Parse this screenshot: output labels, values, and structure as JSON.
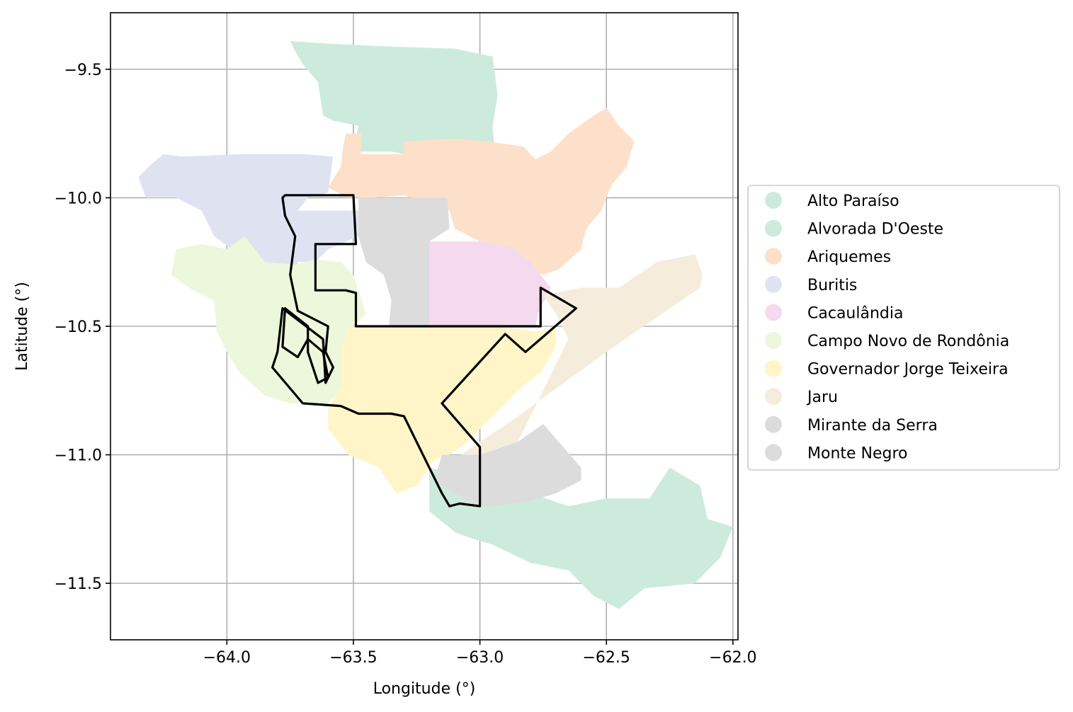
{
  "chart_data": {
    "type": "map",
    "xlabel": "Longitude (°)",
    "ylabel": "Latitude (°)",
    "xlim": [
      -64.46,
      -61.98
    ],
    "ylim": [
      -11.72,
      -9.28
    ],
    "xticks": [
      -64.0,
      -63.5,
      -63.0,
      -62.5,
      -62.0
    ],
    "yticks": [
      -9.5,
      -10.0,
      -10.5,
      -11.0,
      -11.5
    ],
    "xtick_labels": [
      "−64.0",
      "−63.5",
      "−63.0",
      "−62.5",
      "−62.0"
    ],
    "ytick_labels": [
      "−9.5",
      "−10.0",
      "−10.5",
      "−11.0",
      "−11.5"
    ],
    "grid": true,
    "legend_position": "right",
    "legend": [
      {
        "name": "Alto Paraíso",
        "color": "#cdebdc"
      },
      {
        "name": "Alvorada D'Oeste",
        "color": "#cdebdc"
      },
      {
        "name": "Ariquemes",
        "color": "#fde0c9"
      },
      {
        "name": "Buritis",
        "color": "#dfe3f1"
      },
      {
        "name": "Cacaulândia",
        "color": "#f5d9ee"
      },
      {
        "name": "Campo Novo de Rondônia",
        "color": "#ecf7dc"
      },
      {
        "name": "Governador Jorge Teixeira",
        "color": "#fff5c8"
      },
      {
        "name": "Jaru",
        "color": "#f6ecdc"
      },
      {
        "name": "Mirante da Serra",
        "color": "#dcdcdc"
      },
      {
        "name": "Monte Negro",
        "color": "#dcdcdc"
      }
    ],
    "regions": [
      {
        "name": "Alto Paraíso",
        "color": "#cdebdc",
        "coords": [
          [
            -63.75,
            -9.39
          ],
          [
            -63.6,
            -9.4
          ],
          [
            -63.4,
            -9.41
          ],
          [
            -63.1,
            -9.42
          ],
          [
            -62.95,
            -9.45
          ],
          [
            -62.93,
            -9.6
          ],
          [
            -62.95,
            -9.72
          ],
          [
            -62.94,
            -9.83
          ],
          [
            -63.3,
            -9.83
          ],
          [
            -63.35,
            -9.82
          ],
          [
            -63.5,
            -9.82
          ],
          [
            -63.48,
            -9.72
          ],
          [
            -63.58,
            -9.7
          ],
          [
            -63.62,
            -9.68
          ],
          [
            -63.64,
            -9.55
          ],
          [
            -63.7,
            -9.48
          ],
          [
            -63.73,
            -9.43
          ]
        ]
      },
      {
        "name": "Alvorada D'Oeste",
        "color": "#cdebdc",
        "coords": [
          [
            -63.2,
            -11.05
          ],
          [
            -63.0,
            -11.1
          ],
          [
            -62.8,
            -11.15
          ],
          [
            -62.65,
            -11.2
          ],
          [
            -62.5,
            -11.17
          ],
          [
            -62.33,
            -11.17
          ],
          [
            -62.25,
            -11.05
          ],
          [
            -62.13,
            -11.12
          ],
          [
            -62.1,
            -11.25
          ],
          [
            -62.0,
            -11.28
          ],
          [
            -62.05,
            -11.4
          ],
          [
            -62.15,
            -11.5
          ],
          [
            -62.35,
            -11.52
          ],
          [
            -62.45,
            -11.6
          ],
          [
            -62.55,
            -11.55
          ],
          [
            -62.65,
            -11.45
          ],
          [
            -62.8,
            -11.42
          ],
          [
            -62.95,
            -11.35
          ],
          [
            -63.05,
            -11.32
          ],
          [
            -63.1,
            -11.3
          ],
          [
            -63.2,
            -11.22
          ]
        ]
      },
      {
        "name": "Ariquemes",
        "color": "#fde0c9",
        "coords": [
          [
            -63.53,
            -9.75
          ],
          [
            -63.47,
            -9.75
          ],
          [
            -63.47,
            -9.83
          ],
          [
            -63.3,
            -9.83
          ],
          [
            -63.3,
            -9.78
          ],
          [
            -63.1,
            -9.77
          ],
          [
            -62.98,
            -9.78
          ],
          [
            -62.83,
            -9.8
          ],
          [
            -62.78,
            -9.85
          ],
          [
            -62.72,
            -9.82
          ],
          [
            -62.65,
            -9.75
          ],
          [
            -62.55,
            -9.68
          ],
          [
            -62.5,
            -9.65
          ],
          [
            -62.45,
            -9.72
          ],
          [
            -62.39,
            -9.78
          ],
          [
            -62.42,
            -9.88
          ],
          [
            -62.48,
            -9.95
          ],
          [
            -62.52,
            -10.05
          ],
          [
            -62.58,
            -10.12
          ],
          [
            -62.6,
            -10.2
          ],
          [
            -62.69,
            -10.28
          ],
          [
            -62.75,
            -10.3
          ],
          [
            -62.9,
            -10.25
          ],
          [
            -62.99,
            -10.2
          ],
          [
            -63.0,
            -10.17
          ],
          [
            -63.1,
            -10.12
          ],
          [
            -63.12,
            -10.05
          ],
          [
            -63.3,
            -9.99
          ],
          [
            -63.42,
            -10.0
          ],
          [
            -63.52,
            -10.0
          ],
          [
            -63.6,
            -9.96
          ],
          [
            -63.55,
            -9.88
          ],
          [
            -63.54,
            -9.8
          ]
        ]
      },
      {
        "name": "Buritis",
        "color": "#dfe3f1",
        "coords": [
          [
            -64.3,
            -9.87
          ],
          [
            -64.25,
            -9.83
          ],
          [
            -64.18,
            -9.84
          ],
          [
            -63.95,
            -9.83
          ],
          [
            -63.7,
            -9.83
          ],
          [
            -63.58,
            -9.84
          ],
          [
            -63.6,
            -9.98
          ],
          [
            -63.68,
            -10.0
          ],
          [
            -63.72,
            -10.05
          ],
          [
            -63.55,
            -10.05
          ],
          [
            -63.48,
            -10.05
          ],
          [
            -63.48,
            -10.15
          ],
          [
            -63.6,
            -10.2
          ],
          [
            -63.65,
            -10.25
          ],
          [
            -63.72,
            -10.25
          ],
          [
            -63.73,
            -10.35
          ],
          [
            -63.88,
            -10.35
          ],
          [
            -63.92,
            -10.25
          ],
          [
            -63.98,
            -10.2
          ],
          [
            -64.05,
            -10.15
          ],
          [
            -64.1,
            -10.05
          ],
          [
            -64.2,
            -10.0
          ],
          [
            -64.32,
            -10.0
          ],
          [
            -64.35,
            -9.92
          ]
        ]
      },
      {
        "name": "Cacaulândia",
        "color": "#f5d9ee",
        "coords": [
          [
            -63.2,
            -10.17
          ],
          [
            -63.0,
            -10.17
          ],
          [
            -62.88,
            -10.19
          ],
          [
            -62.8,
            -10.25
          ],
          [
            -62.72,
            -10.35
          ],
          [
            -62.77,
            -10.45
          ],
          [
            -62.78,
            -10.5
          ],
          [
            -63.2,
            -10.5
          ],
          [
            -63.22,
            -10.35
          ]
        ]
      },
      {
        "name": "Campo Novo de Rondônia",
        "color": "#ecf7dc",
        "coords": [
          [
            -64.2,
            -10.2
          ],
          [
            -64.1,
            -10.18
          ],
          [
            -64.0,
            -10.2
          ],
          [
            -63.93,
            -10.15
          ],
          [
            -63.85,
            -10.25
          ],
          [
            -63.73,
            -10.26
          ],
          [
            -63.65,
            -10.24
          ],
          [
            -63.55,
            -10.25
          ],
          [
            -63.5,
            -10.3
          ],
          [
            -63.45,
            -10.45
          ],
          [
            -63.5,
            -10.5
          ],
          [
            -63.52,
            -10.6
          ],
          [
            -63.55,
            -10.75
          ],
          [
            -63.6,
            -10.8
          ],
          [
            -63.75,
            -10.8
          ],
          [
            -63.85,
            -10.77
          ],
          [
            -63.95,
            -10.68
          ],
          [
            -64.0,
            -10.6
          ],
          [
            -64.04,
            -10.52
          ],
          [
            -64.05,
            -10.4
          ],
          [
            -64.15,
            -10.35
          ],
          [
            -64.22,
            -10.3
          ]
        ]
      },
      {
        "name": "Governador Jorge Teixeira",
        "color": "#fff5c8",
        "coords": [
          [
            -63.52,
            -10.5
          ],
          [
            -63.4,
            -10.5
          ],
          [
            -63.15,
            -10.5
          ],
          [
            -62.95,
            -10.5
          ],
          [
            -62.78,
            -10.52
          ],
          [
            -62.7,
            -10.51
          ],
          [
            -62.7,
            -10.58
          ],
          [
            -62.76,
            -10.68
          ],
          [
            -62.85,
            -10.75
          ],
          [
            -62.95,
            -10.85
          ],
          [
            -63.05,
            -10.95
          ],
          [
            -63.12,
            -11.0
          ],
          [
            -63.18,
            -11.02
          ],
          [
            -63.25,
            -11.12
          ],
          [
            -63.33,
            -11.15
          ],
          [
            -63.4,
            -11.05
          ],
          [
            -63.52,
            -11.0
          ],
          [
            -63.6,
            -10.9
          ],
          [
            -63.6,
            -10.82
          ],
          [
            -63.55,
            -10.73
          ],
          [
            -63.55,
            -10.6
          ]
        ]
      },
      {
        "name": "Jaru",
        "color": "#f6ecdc",
        "coords": [
          [
            -62.75,
            -10.38
          ],
          [
            -62.6,
            -10.35
          ],
          [
            -62.45,
            -10.35
          ],
          [
            -62.3,
            -10.25
          ],
          [
            -62.15,
            -10.22
          ],
          [
            -62.12,
            -10.3
          ],
          [
            -62.13,
            -10.35
          ],
          [
            -62.5,
            -10.6
          ],
          [
            -62.85,
            -10.85
          ],
          [
            -63.15,
            -11.05
          ],
          [
            -63.1,
            -11.15
          ],
          [
            -63.0,
            -11.15
          ],
          [
            -62.9,
            -11.05
          ],
          [
            -62.75,
            -10.75
          ],
          [
            -62.65,
            -10.55
          ],
          [
            -62.7,
            -10.45
          ]
        ]
      },
      {
        "name": "Mirante da Serra",
        "color": "#dcdcdc",
        "coords": [
          [
            -63.13,
            -10.0
          ],
          [
            -63.3,
            -10.0
          ],
          [
            -63.48,
            -10.0
          ],
          [
            -63.48,
            -10.15
          ],
          [
            -63.45,
            -10.25
          ],
          [
            -63.38,
            -10.3
          ],
          [
            -63.35,
            -10.4
          ],
          [
            -63.36,
            -10.5
          ],
          [
            -63.2,
            -10.5
          ],
          [
            -63.2,
            -10.17
          ],
          [
            -63.12,
            -10.12
          ]
        ]
      },
      {
        "name": "Monte Negro",
        "color": "#dcdcdc",
        "coords": [
          [
            -63.15,
            -11.0
          ],
          [
            -63.0,
            -11.0
          ],
          [
            -62.85,
            -10.95
          ],
          [
            -62.75,
            -10.88
          ],
          [
            -62.6,
            -11.05
          ],
          [
            -62.6,
            -11.1
          ],
          [
            -62.7,
            -11.15
          ],
          [
            -62.8,
            -11.18
          ],
          [
            -62.95,
            -11.2
          ],
          [
            -63.0,
            -11.2
          ],
          [
            -63.1,
            -11.15
          ],
          [
            -63.18,
            -11.1
          ]
        ]
      }
    ],
    "outline": [
      [
        -63.77,
        -9.99
      ],
      [
        -63.7,
        -9.99
      ],
      [
        -63.5,
        -9.99
      ],
      [
        -63.49,
        -10.18
      ],
      [
        -63.65,
        -10.18
      ],
      [
        -63.65,
        -10.36
      ],
      [
        -63.53,
        -10.36
      ],
      [
        -63.49,
        -10.37
      ],
      [
        -63.49,
        -10.5
      ],
      [
        -63.2,
        -10.5
      ],
      [
        -62.76,
        -10.5
      ],
      [
        -62.76,
        -10.35
      ],
      [
        -62.62,
        -10.43
      ],
      [
        -62.82,
        -10.6
      ],
      [
        -62.9,
        -10.53
      ],
      [
        -63.15,
        -10.8
      ],
      [
        -63.0,
        -10.97
      ],
      [
        -63.0,
        -11.2
      ],
      [
        -63.08,
        -11.19
      ],
      [
        -63.12,
        -11.2
      ],
      [
        -63.15,
        -11.15
      ],
      [
        -63.2,
        -11.05
      ],
      [
        -63.3,
        -10.85
      ],
      [
        -63.35,
        -10.84
      ],
      [
        -63.48,
        -10.84
      ],
      [
        -63.55,
        -10.81
      ],
      [
        -63.7,
        -10.8
      ],
      [
        -63.82,
        -10.66
      ],
      [
        -63.8,
        -10.6
      ],
      [
        -63.78,
        -10.43
      ],
      [
        -63.62,
        -10.55
      ],
      [
        -63.61,
        -10.72
      ],
      [
        -63.58,
        -10.66
      ],
      [
        -63.61,
        -10.6
      ],
      [
        -63.6,
        -10.5
      ],
      [
        -63.72,
        -10.44
      ],
      [
        -63.75,
        -10.3
      ],
      [
        -63.73,
        -10.15
      ],
      [
        -63.77,
        -10.07
      ],
      [
        -63.78,
        -10.0
      ]
    ],
    "outline_inner": [
      [
        -63.77,
        -10.43
      ],
      [
        -63.68,
        -10.5
      ],
      [
        -63.68,
        -10.6
      ],
      [
        -63.64,
        -10.72
      ],
      [
        -63.6,
        -10.7
      ],
      [
        -63.62,
        -10.6
      ],
      [
        -63.68,
        -10.55
      ],
      [
        -63.72,
        -10.62
      ],
      [
        -63.78,
        -10.58
      ]
    ]
  }
}
